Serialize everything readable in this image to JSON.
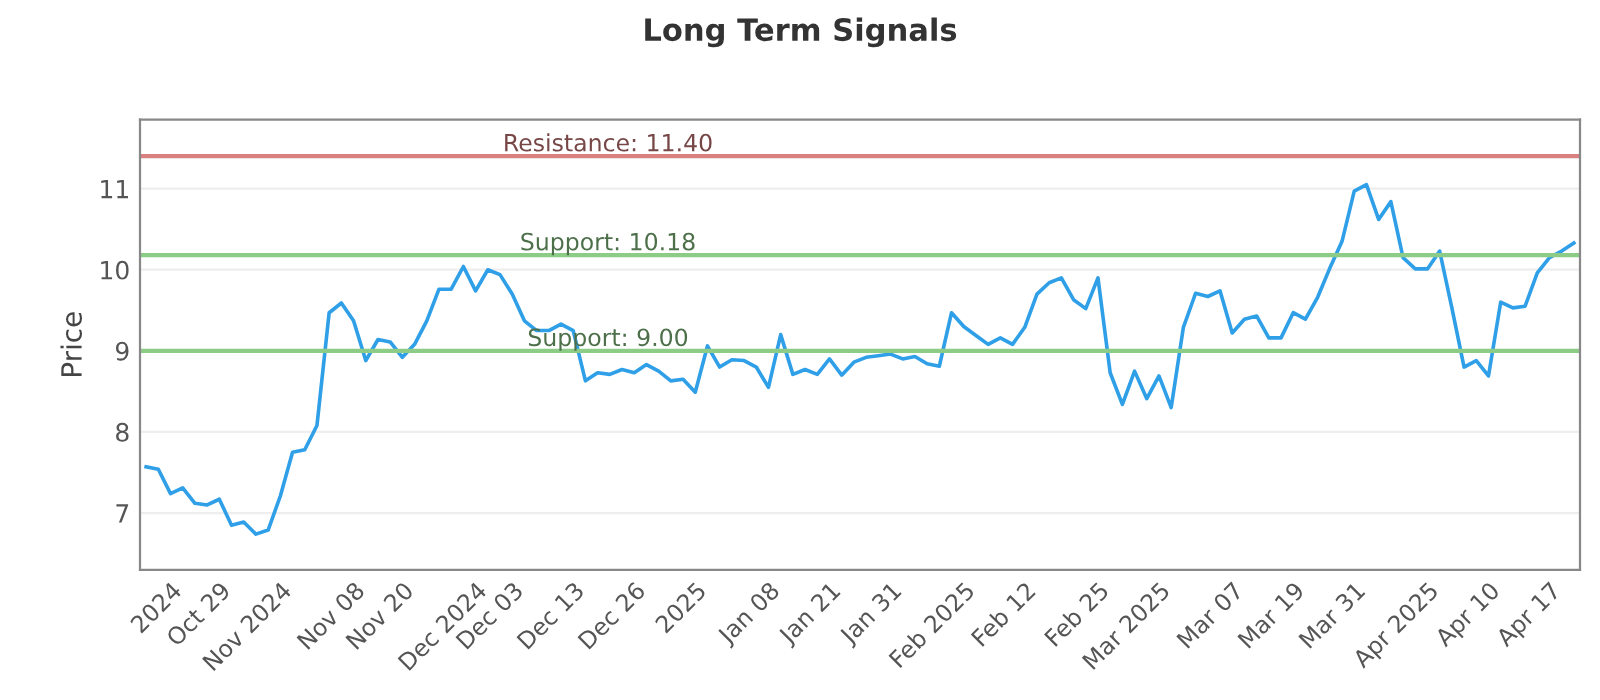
{
  "chart_data": {
    "type": "line",
    "title": "Long Term Signals",
    "ylabel": "Price",
    "categories": [
      null,
      null,
      "2024",
      null,
      null,
      null,
      "Oct 29",
      null,
      null,
      null,
      null,
      "Nov 2024",
      null,
      null,
      null,
      null,
      null,
      "Nov 08",
      null,
      null,
      null,
      "Nov 20",
      null,
      null,
      null,
      null,
      null,
      "Dec 2024",
      null,
      null,
      "Dec 03",
      null,
      null,
      null,
      null,
      "Dec 13",
      null,
      null,
      null,
      null,
      "Dec 26",
      null,
      null,
      null,
      null,
      "2025",
      null,
      null,
      null,
      null,
      null,
      "Jan 08",
      null,
      null,
      null,
      null,
      "Jan 21",
      null,
      null,
      null,
      null,
      "Jan 31",
      null,
      null,
      null,
      null,
      null,
      "Feb 2025",
      null,
      null,
      null,
      null,
      "Feb 12",
      null,
      null,
      null,
      null,
      null,
      "Feb 25",
      null,
      null,
      null,
      null,
      "Mar 2025",
      null,
      null,
      null,
      null,
      null,
      "Mar 07",
      null,
      null,
      null,
      null,
      "Mar 19",
      null,
      null,
      null,
      null,
      "Mar 31",
      null,
      null,
      null,
      null,
      null,
      "Apr 2025",
      null,
      null,
      null,
      null,
      "Apr 10",
      null,
      null,
      null,
      null,
      "Apr 17",
      null,
      null
    ],
    "series": [
      {
        "color": "#2f9fe8",
        "values": [
          7.57,
          7.54,
          7.24,
          7.31,
          7.12,
          7.1,
          7.17,
          6.85,
          6.89,
          6.74,
          6.79,
          7.21,
          7.75,
          7.78,
          8.08,
          9.47,
          9.59,
          9.37,
          8.88,
          9.14,
          9.11,
          8.92,
          9.08,
          9.37,
          9.76,
          9.76,
          10.04,
          9.74,
          10.0,
          9.94,
          9.7,
          9.37,
          9.25,
          9.25,
          9.33,
          9.25,
          8.63,
          8.73,
          8.71,
          8.77,
          8.73,
          8.83,
          8.75,
          8.63,
          8.65,
          8.49,
          9.06,
          8.8,
          8.89,
          8.88,
          8.8,
          8.55,
          9.2,
          8.71,
          8.77,
          8.71,
          8.9,
          8.7,
          8.86,
          8.92,
          8.94,
          8.96,
          8.9,
          8.93,
          8.84,
          8.81,
          9.47,
          9.3,
          9.19,
          9.08,
          9.16,
          9.08,
          9.29,
          9.7,
          9.84,
          9.9,
          9.63,
          9.52,
          9.9,
          8.73,
          8.34,
          8.75,
          8.41,
          8.69,
          8.3,
          9.29,
          9.71,
          9.67,
          9.74,
          9.22,
          9.39,
          9.43,
          9.16,
          9.16,
          9.47,
          9.39,
          9.66,
          10.02,
          10.35,
          10.97,
          11.05,
          10.62,
          10.84,
          10.15,
          10.01,
          10.01,
          10.23,
          9.53,
          8.8,
          8.88,
          8.69,
          9.6,
          9.53,
          9.55,
          9.96,
          10.15,
          10.23,
          10.33
        ]
      }
    ],
    "ylim": [
      6.3,
      11.85
    ],
    "yticks": [
      7,
      8,
      9,
      10,
      11
    ],
    "grid": "y",
    "ref_lines": [
      {
        "axis": "y",
        "value": 11.4,
        "label": "Resistance: 11.40",
        "color": "#d98080"
      },
      {
        "axis": "y",
        "value": 10.18,
        "label": "Support: 10.18",
        "color": "#8ccc86"
      },
      {
        "axis": "y",
        "value": 9.0,
        "label": "Support: 9.00",
        "color": "#8ccc86"
      }
    ]
  }
}
